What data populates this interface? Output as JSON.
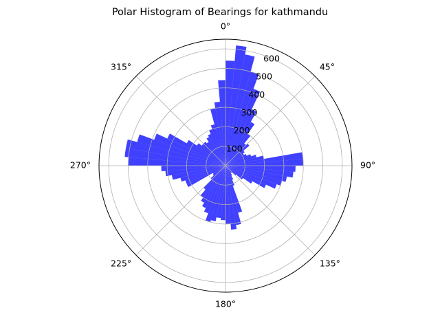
{
  "chart_data": {
    "type": "polar-bar",
    "title": "Polar Histogram of Bearings for kathmandu",
    "direction": "clockwise",
    "zero_location": "top",
    "bin_width_deg": 5,
    "bar_color": "#0000ff",
    "bar_alpha": 0.75,
    "r_ticks": [
      "100",
      "200",
      "300",
      "400",
      "500",
      "600"
    ],
    "r_tick_values": [
      100,
      200,
      300,
      400,
      500,
      600
    ],
    "rmax": 650,
    "theta_ticks": [
      "0°",
      "45°",
      "90°",
      "135°",
      "180°",
      "225°",
      "270°",
      "315°"
    ],
    "theta_tick_values": [
      0,
      45,
      90,
      135,
      180,
      225,
      270,
      315
    ],
    "grid": true,
    "bins_deg": [
      0,
      5,
      10,
      15,
      20,
      25,
      30,
      35,
      40,
      45,
      50,
      55,
      60,
      65,
      70,
      75,
      80,
      85,
      90,
      95,
      100,
      105,
      110,
      115,
      120,
      125,
      130,
      135,
      140,
      145,
      150,
      155,
      160,
      165,
      170,
      175,
      180,
      185,
      190,
      195,
      200,
      205,
      210,
      215,
      220,
      225,
      230,
      235,
      240,
      245,
      250,
      255,
      260,
      265,
      270,
      275,
      280,
      285,
      290,
      295,
      300,
      305,
      310,
      315,
      320,
      325,
      330,
      335,
      340,
      345,
      350,
      355
    ],
    "values": [
      540,
      620,
      580,
      500,
      420,
      320,
      260,
      200,
      150,
      160,
      120,
      110,
      120,
      140,
      165,
      200,
      400,
      400,
      360,
      350,
      320,
      300,
      280,
      230,
      160,
      110,
      70,
      50,
      45,
      60,
      80,
      110,
      250,
      310,
      330,
      300,
      280,
      270,
      290,
      300,
      260,
      240,
      220,
      200,
      160,
      100,
      80,
      75,
      220,
      220,
      240,
      280,
      310,
      330,
      500,
      520,
      520,
      470,
      390,
      330,
      230,
      180,
      160,
      160,
      150,
      170,
      180,
      200,
      220,
      300,
      330,
      440
    ]
  }
}
